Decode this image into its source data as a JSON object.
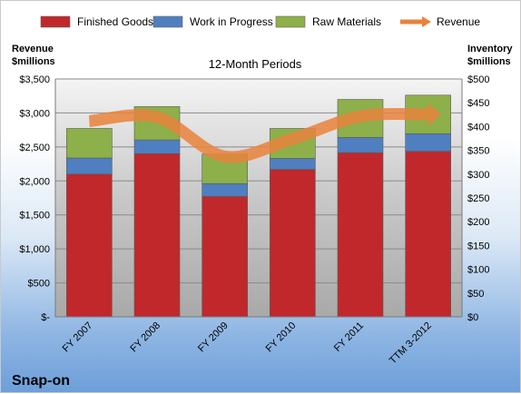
{
  "chart_data": {
    "type": "bar",
    "stacked": true,
    "title": "12-Month Periods",
    "company": "Snap-on",
    "categories": [
      "FY 2007",
      "FY 2008",
      "FY 2009",
      "FY 2010",
      "FY 2011",
      "TTM 3-2012"
    ],
    "series": [
      {
        "name": "Finished Goods",
        "axis": "right",
        "color": "#c0282c",
        "values": [
          300,
          343,
          253,
          310,
          345,
          348
        ]
      },
      {
        "name": "Work in Progress",
        "axis": "right",
        "color": "#4f7fc0",
        "values": [
          34,
          29,
          27,
          23,
          32,
          37
        ]
      },
      {
        "name": "Raw Materials",
        "axis": "right",
        "color": "#8db04a",
        "values": [
          62,
          70,
          62,
          63,
          80,
          81
        ]
      }
    ],
    "line_series": {
      "name": "Revenue",
      "axis": "left",
      "color": "#e9823c",
      "values": [
        2880,
        2940,
        2360,
        2620,
        2950,
        2980
      ]
    },
    "ylabel_left": "Revenue\n$millions",
    "ylabel_right": "Inventory\n$millions",
    "ylim_left": [
      0,
      3500
    ],
    "ylim_right": [
      0,
      500
    ],
    "yticks_left": [
      "$-",
      "$500",
      "$1,000",
      "$1,500",
      "$2,000",
      "$2,500",
      "$3,000",
      "$3,500"
    ],
    "yticks_right": [
      "$0",
      "$50",
      "$100",
      "$150",
      "$200",
      "$250",
      "$300",
      "$350",
      "$400",
      "$450",
      "$500"
    ],
    "grid": true,
    "legend_position": "top"
  }
}
